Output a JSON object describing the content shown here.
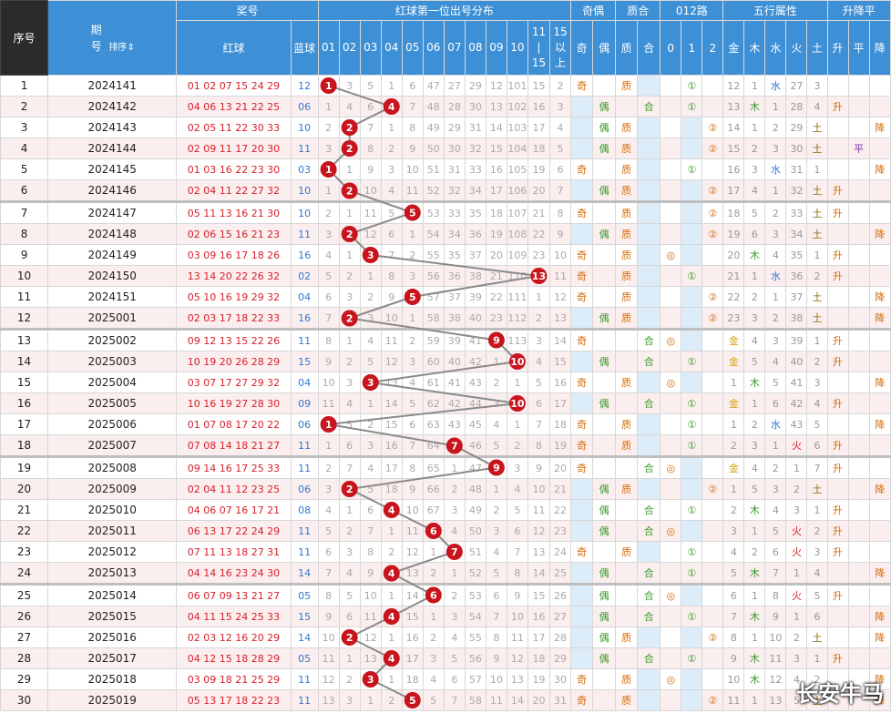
{
  "header": {
    "col_index": "序号",
    "col_period": "期号",
    "sort_label": "排序",
    "group_prize": "奖号",
    "col_red": "红球",
    "col_blue": "蓝球",
    "group_dist": "红球第一位出号分布",
    "digits": [
      "01",
      "02",
      "03",
      "04",
      "05",
      "06",
      "07",
      "08",
      "09",
      "10",
      "11\n|\n15",
      "15\n以\n上"
    ],
    "group_qiou": "奇偶",
    "sub_qiou": [
      "奇",
      "偶"
    ],
    "group_zhihe": "质合",
    "sub_zhihe": [
      "质",
      "合"
    ],
    "group_012": "012路",
    "sub_012": [
      "0",
      "1",
      "2"
    ],
    "group_wuxing": "五行属性",
    "sub_wuxing": [
      "金",
      "木",
      "水",
      "火",
      "土"
    ],
    "group_updown": "升降平",
    "sub_updown": [
      "升",
      "平",
      "降"
    ]
  },
  "rows": [
    {
      "idx": "1",
      "period": "2024141",
      "red": "01 02 07 15 24 29",
      "blue": "12",
      "first": 1,
      "dist": [
        "1",
        "3",
        "5",
        "1",
        "6",
        "47",
        "27",
        "29",
        "12",
        "101",
        "15",
        "2"
      ],
      "qiou": "奇",
      "zhihe": "质",
      "r012": "1",
      "wx": "水",
      "wxv": [
        "12",
        "1",
        "水",
        "27",
        "3"
      ],
      "ud": ""
    },
    {
      "idx": "2",
      "period": "2024142",
      "red": "04 06 13 21 22 25",
      "blue": "06",
      "first": 4,
      "dist": [
        "1",
        "4",
        "6",
        "4",
        "7",
        "48",
        "28",
        "30",
        "13",
        "102",
        "16",
        "3"
      ],
      "qiou": "偶",
      "zhihe": "合",
      "r012": "1",
      "wx": "木",
      "wxv": [
        "13",
        "木",
        "1",
        "28",
        "4"
      ],
      "ud": "升"
    },
    {
      "idx": "3",
      "period": "2024143",
      "red": "02 05 11 22 30 33",
      "blue": "10",
      "first": 2,
      "dist": [
        "2",
        "2",
        "7",
        "1",
        "8",
        "49",
        "29",
        "31",
        "14",
        "103",
        "17",
        "4"
      ],
      "qiou": "偶",
      "zhihe": "质",
      "r012": "2",
      "wx": "土",
      "wxv": [
        "14",
        "1",
        "2",
        "29",
        "土"
      ],
      "ud": "降"
    },
    {
      "idx": "4",
      "period": "2024144",
      "red": "02 09 11 17 20 30",
      "blue": "11",
      "first": 2,
      "dist": [
        "3",
        "2",
        "8",
        "2",
        "9",
        "50",
        "30",
        "32",
        "15",
        "104",
        "18",
        "5"
      ],
      "qiou": "偶",
      "zhihe": "质",
      "r012": "2",
      "wx": "土",
      "wxv": [
        "15",
        "2",
        "3",
        "30",
        "土"
      ],
      "ud": "平"
    },
    {
      "idx": "5",
      "period": "2024145",
      "red": "01 03 16 22 23 30",
      "blue": "03",
      "first": 1,
      "dist": [
        "1",
        "1",
        "9",
        "3",
        "10",
        "51",
        "31",
        "33",
        "16",
        "105",
        "19",
        "6"
      ],
      "qiou": "奇",
      "zhihe": "质",
      "r012": "1",
      "wx": "水",
      "wxv": [
        "16",
        "3",
        "水",
        "31",
        "1"
      ],
      "ud": "降"
    },
    {
      "idx": "6",
      "period": "2024146",
      "red": "02 04 11 22 27 32",
      "blue": "10",
      "first": 2,
      "dist": [
        "1",
        "2",
        "10",
        "4",
        "11",
        "52",
        "32",
        "34",
        "17",
        "106",
        "20",
        "7"
      ],
      "qiou": "偶",
      "zhihe": "质",
      "r012": "2",
      "wx": "土",
      "wxv": [
        "17",
        "4",
        "1",
        "32",
        "土"
      ],
      "ud": "升"
    },
    {
      "idx": "7",
      "period": "2024147",
      "red": "05 11 13 16 21 30",
      "blue": "10",
      "first": 5,
      "dist": [
        "2",
        "1",
        "11",
        "5",
        "5",
        "53",
        "33",
        "35",
        "18",
        "107",
        "21",
        "8"
      ],
      "qiou": "奇",
      "zhihe": "质",
      "r012": "2",
      "wx": "土",
      "wxv": [
        "18",
        "5",
        "2",
        "33",
        "土"
      ],
      "ud": "升"
    },
    {
      "idx": "8",
      "period": "2024148",
      "red": "02 06 15 16 21 23",
      "blue": "11",
      "first": 2,
      "dist": [
        "3",
        "2",
        "12",
        "6",
        "1",
        "54",
        "34",
        "36",
        "19",
        "108",
        "22",
        "9"
      ],
      "qiou": "偶",
      "zhihe": "质",
      "r012": "2",
      "wx": "土",
      "wxv": [
        "19",
        "6",
        "3",
        "34",
        "土"
      ],
      "ud": "降"
    },
    {
      "idx": "9",
      "period": "2024149",
      "red": "03 09 16 17 18 26",
      "blue": "16",
      "first": 3,
      "dist": [
        "4",
        "1",
        "3",
        "7",
        "2",
        "55",
        "35",
        "37",
        "20",
        "109",
        "23",
        "10"
      ],
      "qiou": "奇",
      "zhihe": "质",
      "r012": "0",
      "wx": "木",
      "wxv": [
        "20",
        "木",
        "4",
        "35",
        "1"
      ],
      "ud": "升"
    },
    {
      "idx": "10",
      "period": "2024150",
      "red": "13 14 20 22 26 32",
      "blue": "02",
      "first": 13,
      "dist": [
        "5",
        "2",
        "1",
        "8",
        "3",
        "56",
        "36",
        "38",
        "21",
        "110",
        "13",
        "11"
      ],
      "qiou": "奇",
      "zhihe": "质",
      "r012": "1",
      "wx": "水",
      "wxv": [
        "21",
        "1",
        "水",
        "36",
        "2"
      ],
      "ud": "升"
    },
    {
      "idx": "11",
      "period": "2024151",
      "red": "05 10 16 19 29 32",
      "blue": "04",
      "first": 5,
      "dist": [
        "6",
        "3",
        "2",
        "9",
        "5",
        "57",
        "37",
        "39",
        "22",
        "111",
        "1",
        "12"
      ],
      "qiou": "奇",
      "zhihe": "质",
      "r012": "2",
      "wx": "土",
      "wxv": [
        "22",
        "2",
        "1",
        "37",
        "土"
      ],
      "ud": "降"
    },
    {
      "idx": "12",
      "period": "2025001",
      "red": "02 03 17 18 22 33",
      "blue": "16",
      "first": 2,
      "dist": [
        "7",
        "2",
        "3",
        "10",
        "1",
        "58",
        "38",
        "40",
        "23",
        "112",
        "2",
        "13"
      ],
      "qiou": "偶",
      "zhihe": "质",
      "r012": "2",
      "wx": "土",
      "wxv": [
        "23",
        "3",
        "2",
        "38",
        "土"
      ],
      "ud": "降"
    },
    {
      "idx": "13",
      "period": "2025002",
      "red": "09 12 13 15 22 26",
      "blue": "11",
      "first": 9,
      "dist": [
        "8",
        "1",
        "4",
        "11",
        "2",
        "59",
        "39",
        "41",
        "9",
        "113",
        "3",
        "14"
      ],
      "qiou": "奇",
      "zhihe": "合",
      "r012": "0",
      "wx": "金",
      "wxv": [
        "金",
        "4",
        "3",
        "39",
        "1"
      ],
      "ud": "升"
    },
    {
      "idx": "14",
      "period": "2025003",
      "red": "10 19 20 26 28 29",
      "blue": "15",
      "first": 10,
      "dist": [
        "9",
        "2",
        "5",
        "12",
        "3",
        "60",
        "40",
        "42",
        "1",
        "10",
        "4",
        "15"
      ],
      "qiou": "偶",
      "zhihe": "合",
      "r012": "1",
      "wx": "金",
      "wxv": [
        "金",
        "5",
        "4",
        "40",
        "2"
      ],
      "ud": "升"
    },
    {
      "idx": "15",
      "period": "2025004",
      "red": "03 07 17 27 29 32",
      "blue": "04",
      "first": 3,
      "dist": [
        "10",
        "3",
        "3",
        "13",
        "4",
        "61",
        "41",
        "43",
        "2",
        "1",
        "5",
        "16"
      ],
      "qiou": "奇",
      "zhihe": "质",
      "r012": "0",
      "wx": "木",
      "wxv": [
        "1",
        "木",
        "5",
        "41",
        "3"
      ],
      "ud": "降"
    },
    {
      "idx": "16",
      "period": "2025005",
      "red": "10 16 19 27 28 30",
      "blue": "09",
      "first": 10,
      "dist": [
        "11",
        "4",
        "1",
        "14",
        "5",
        "62",
        "42",
        "44",
        "3",
        "10",
        "6",
        "17"
      ],
      "qiou": "偶",
      "zhihe": "合",
      "r012": "1",
      "wx": "金",
      "wxv": [
        "金",
        "1",
        "6",
        "42",
        "4"
      ],
      "ud": "升"
    },
    {
      "idx": "17",
      "period": "2025006",
      "red": "01 07 08 17 20 22",
      "blue": "06",
      "first": 1,
      "dist": [
        "1",
        "5",
        "2",
        "15",
        "6",
        "63",
        "43",
        "45",
        "4",
        "1",
        "7",
        "18"
      ],
      "qiou": "奇",
      "zhihe": "质",
      "r012": "1",
      "wx": "水",
      "wxv": [
        "1",
        "2",
        "水",
        "43",
        "5"
      ],
      "ud": "降"
    },
    {
      "idx": "18",
      "period": "2025007",
      "red": "07 08 14 18 21 27",
      "blue": "11",
      "first": 7,
      "dist": [
        "1",
        "6",
        "3",
        "16",
        "7",
        "64",
        "7",
        "46",
        "5",
        "2",
        "8",
        "19"
      ],
      "qiou": "奇",
      "zhihe": "质",
      "r012": "1",
      "wx": "火",
      "wxv": [
        "2",
        "3",
        "1",
        "火",
        "6"
      ],
      "ud": "升"
    },
    {
      "idx": "19",
      "period": "2025008",
      "red": "09 14 16 17 25 33",
      "blue": "11",
      "first": 9,
      "dist": [
        "2",
        "7",
        "4",
        "17",
        "8",
        "65",
        "1",
        "47",
        "9",
        "3",
        "9",
        "20"
      ],
      "qiou": "奇",
      "zhihe": "合",
      "r012": "0",
      "wx": "金",
      "wxv": [
        "金",
        "4",
        "2",
        "1",
        "7"
      ],
      "ud": "升"
    },
    {
      "idx": "20",
      "period": "2025009",
      "red": "02 04 11 12 23 25",
      "blue": "06",
      "first": 2,
      "dist": [
        "3",
        "2",
        "5",
        "18",
        "9",
        "66",
        "2",
        "48",
        "1",
        "4",
        "10",
        "21"
      ],
      "qiou": "偶",
      "zhihe": "质",
      "r012": "2",
      "wx": "土",
      "wxv": [
        "1",
        "5",
        "3",
        "2",
        "土"
      ],
      "ud": "降"
    },
    {
      "idx": "21",
      "period": "2025010",
      "red": "04 06 07 16 17 21",
      "blue": "08",
      "first": 4,
      "dist": [
        "4",
        "1",
        "6",
        "4",
        "10",
        "67",
        "3",
        "49",
        "2",
        "5",
        "11",
        "22"
      ],
      "qiou": "偶",
      "zhihe": "合",
      "r012": "1",
      "wx": "木",
      "wxv": [
        "2",
        "木",
        "4",
        "3",
        "1"
      ],
      "ud": "升"
    },
    {
      "idx": "22",
      "period": "2025011",
      "red": "06 13 17 22 24 29",
      "blue": "11",
      "first": 6,
      "dist": [
        "5",
        "2",
        "7",
        "1",
        "11",
        "6",
        "4",
        "50",
        "3",
        "6",
        "12",
        "23"
      ],
      "qiou": "偶",
      "zhihe": "合",
      "r012": "0",
      "wx": "火",
      "wxv": [
        "3",
        "1",
        "5",
        "火",
        "2"
      ],
      "ud": "升"
    },
    {
      "idx": "23",
      "period": "2025012",
      "red": "07 11 13 18 27 31",
      "blue": "11",
      "first": 7,
      "dist": [
        "6",
        "3",
        "8",
        "2",
        "12",
        "1",
        "7",
        "51",
        "4",
        "7",
        "13",
        "24"
      ],
      "qiou": "奇",
      "zhihe": "质",
      "r012": "1",
      "wx": "火",
      "wxv": [
        "4",
        "2",
        "6",
        "火",
        "3"
      ],
      "ud": "升"
    },
    {
      "idx": "24",
      "period": "2025013",
      "red": "04 14 16 23 24 30",
      "blue": "14",
      "first": 4,
      "dist": [
        "7",
        "4",
        "9",
        "4",
        "13",
        "2",
        "1",
        "52",
        "5",
        "8",
        "14",
        "25"
      ],
      "qiou": "偶",
      "zhihe": "合",
      "r012": "1",
      "wx": "木",
      "wxv": [
        "5",
        "木",
        "7",
        "1",
        "4"
      ],
      "ud": "降"
    },
    {
      "idx": "25",
      "period": "2025014",
      "red": "06 07 09 13 21 27",
      "blue": "05",
      "first": 6,
      "dist": [
        "8",
        "5",
        "10",
        "1",
        "14",
        "6",
        "2",
        "53",
        "6",
        "9",
        "15",
        "26"
      ],
      "qiou": "偶",
      "zhihe": "合",
      "r012": "0",
      "wx": "火",
      "wxv": [
        "6",
        "1",
        "8",
        "火",
        "5"
      ],
      "ud": "升"
    },
    {
      "idx": "26",
      "period": "2025015",
      "red": "04 11 15 24 25 33",
      "blue": "15",
      "first": 4,
      "dist": [
        "9",
        "6",
        "11",
        "4",
        "15",
        "1",
        "3",
        "54",
        "7",
        "10",
        "16",
        "27"
      ],
      "qiou": "偶",
      "zhihe": "合",
      "r012": "1",
      "wx": "木",
      "wxv": [
        "7",
        "木",
        "9",
        "1",
        "6"
      ],
      "ud": "降"
    },
    {
      "idx": "27",
      "period": "2025016",
      "red": "02 03 12 16 20 29",
      "blue": "14",
      "first": 2,
      "dist": [
        "10",
        "2",
        "12",
        "1",
        "16",
        "2",
        "4",
        "55",
        "8",
        "11",
        "17",
        "28"
      ],
      "qiou": "偶",
      "zhihe": "质",
      "r012": "2",
      "wx": "土",
      "wxv": [
        "8",
        "1",
        "10",
        "2",
        "土"
      ],
      "ud": "降"
    },
    {
      "idx": "28",
      "period": "2025017",
      "red": "04 12 15 18 28 29",
      "blue": "05",
      "first": 4,
      "dist": [
        "11",
        "1",
        "13",
        "4",
        "17",
        "3",
        "5",
        "56",
        "9",
        "12",
        "18",
        "29"
      ],
      "qiou": "偶",
      "zhihe": "合",
      "r012": "1",
      "wx": "木",
      "wxv": [
        "9",
        "木",
        "11",
        "3",
        "1"
      ],
      "ud": "升"
    },
    {
      "idx": "29",
      "period": "2025018",
      "red": "03 09 18 21 25 29",
      "blue": "11",
      "first": 3,
      "dist": [
        "12",
        "2",
        "3",
        "1",
        "18",
        "4",
        "6",
        "57",
        "10",
        "13",
        "19",
        "30"
      ],
      "qiou": "奇",
      "zhihe": "质",
      "r012": "0",
      "wx": "木",
      "wxv": [
        "10",
        "木",
        "12",
        "4",
        "2"
      ],
      "ud": "降"
    },
    {
      "idx": "30",
      "period": "2025019",
      "red": "05 13 17 18 22 23",
      "blue": "11",
      "first": 5,
      "dist": [
        "13",
        "3",
        "1",
        "2",
        "5",
        "5",
        "7",
        "58",
        "11",
        "14",
        "20",
        "31"
      ],
      "qiou": "奇",
      "zhihe": "质",
      "r012": "2",
      "wx": "土",
      "wxv": [
        "11",
        "1",
        "13",
        "5",
        "土"
      ],
      "ud": "降"
    }
  ],
  "watermark": "长安牛马",
  "colors": {
    "header_blue": "#3d8fd6",
    "header_dark": "#2b2b2b",
    "ball_red": "#c8141c",
    "line_gray": "#8a8a8a"
  }
}
